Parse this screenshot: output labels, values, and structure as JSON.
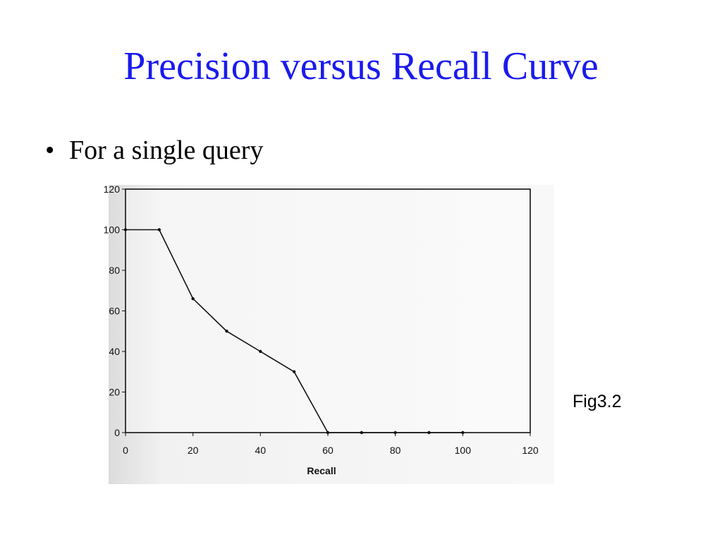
{
  "slide": {
    "title": "Precision versus Recall Curve",
    "bullet": "For a single query",
    "caption": "Fig3.2",
    "title_color": "#1a1aee"
  },
  "chart_data": {
    "type": "line",
    "title": "",
    "xlabel": "Recall",
    "ylabel": "",
    "xlim": [
      0,
      120
    ],
    "ylim": [
      0,
      120
    ],
    "xticks": [
      0,
      20,
      40,
      60,
      80,
      100,
      120
    ],
    "yticks": [
      0,
      20,
      40,
      60,
      80,
      100,
      120
    ],
    "grid": false,
    "series": [
      {
        "x": [
          0,
          10,
          20,
          30,
          40,
          50,
          60,
          70,
          80,
          90,
          100
        ],
        "y": [
          100,
          100,
          66,
          50,
          40,
          30,
          0,
          0,
          0,
          0,
          0
        ]
      }
    ],
    "line_color": "#111111"
  }
}
